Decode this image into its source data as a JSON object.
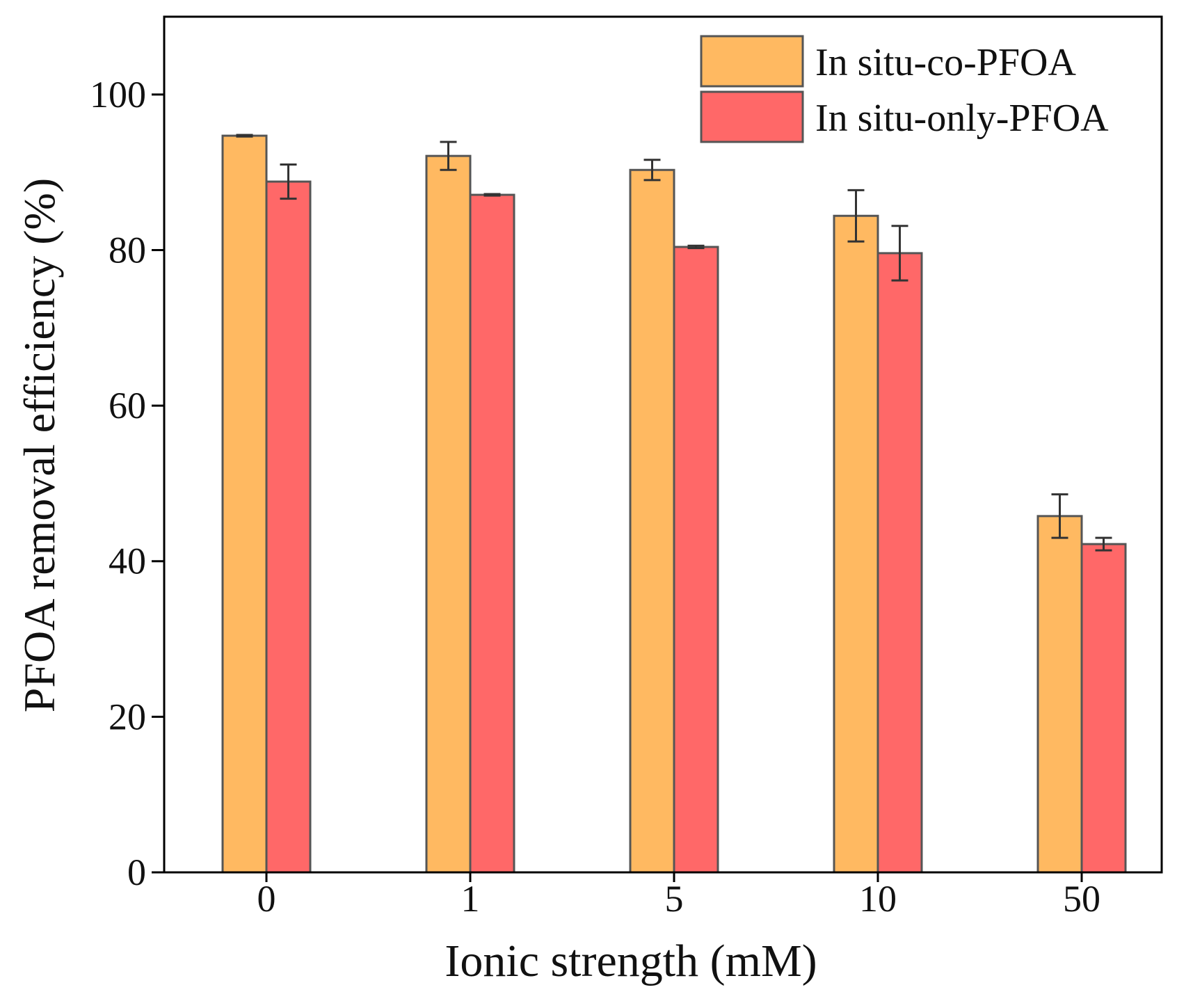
{
  "chart_data": {
    "type": "bar",
    "title": "",
    "xlabel": "Ionic strength (mM)",
    "ylabel": "PFOA removal efficiency (%)",
    "categories": [
      "0",
      "1",
      "5",
      "10",
      "50"
    ],
    "ylim": [
      0,
      110
    ],
    "yticks": [
      "0",
      "20",
      "40",
      "60",
      "80",
      "100"
    ],
    "grid": false,
    "legend_position": "top-right",
    "series": [
      {
        "name": "In situ-co-PFOA",
        "color": "#FFB961",
        "values": [
          94.7,
          92.1,
          90.3,
          84.4,
          45.8
        ],
        "errors": [
          0.1,
          1.8,
          1.3,
          3.3,
          2.8
        ]
      },
      {
        "name": "In situ-only-PFOA",
        "color": "#FF6868",
        "values": [
          88.8,
          87.1,
          80.4,
          79.6,
          42.2
        ],
        "errors": [
          2.2,
          0.1,
          0.15,
          3.5,
          0.8
        ]
      }
    ]
  }
}
